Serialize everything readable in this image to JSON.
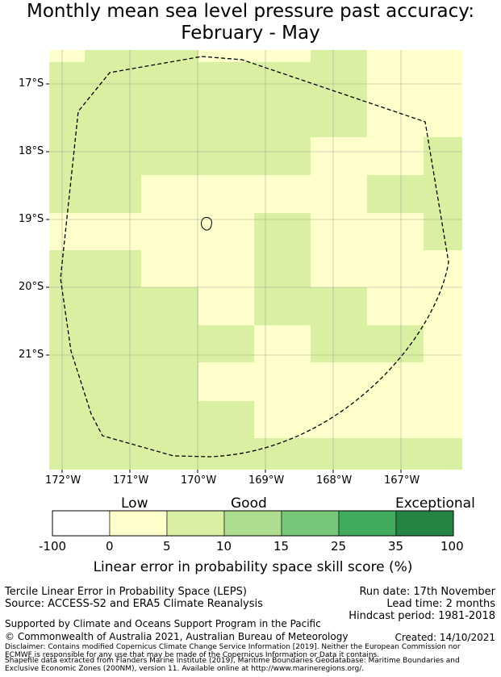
{
  "title_line1": "Monthly mean sea level pressure past accuracy:",
  "title_line2": "February - May",
  "map": {
    "lat_labels": [
      "17°S",
      "18°S",
      "19°S",
      "20°S",
      "21°S"
    ],
    "lon_labels": [
      "172°W",
      "171°W",
      "170°W",
      "169°W",
      "168°W",
      "167°W"
    ]
  },
  "colorbar": {
    "category_low": "Low",
    "category_good": "Good",
    "category_exceptional": "Exceptional",
    "ticks": [
      "-100",
      "0",
      "5",
      "10",
      "15",
      "25",
      "35",
      "100"
    ],
    "colors": [
      "#ffffff",
      "#ffffcc",
      "#d9f0a3",
      "#addd8e",
      "#78c679",
      "#41ab5d",
      "#238443"
    ],
    "label": "Linear error in probability space skill score (%)"
  },
  "info": {
    "method": "Tercile Linear Error in Probability Space (LEPS)",
    "source": "Source: ACCESS-S2 and ERA5 Climate Reanalysis",
    "run_date": "Run date: 17th November",
    "lead_time": "Lead time: 2 months",
    "hindcast": "Hindcast period: 1981-2018",
    "support": "Supported by Climate and Oceans Support Program in the Pacific",
    "copyright": "© Commonwealth of Australia 2021, Australian Bureau of Meteorology",
    "created": "Created: 14/10/2021",
    "disclaimer1": "Disclaimer: Contains modified Copernicus Climate Change Service Information [2019]. Neither the European Commission nor",
    "disclaimer2": "ECMWF is responsible for any use that may be made of the Copernicus Information or Data it contains.",
    "disclaimer3": "Shapefile data extracted from Flanders Marine Institute (2019), Maritime Boundaries Geodatabase: Maritime Boundaries and",
    "disclaimer4": "Exclusive Economic Zones (200NM), version 11. Available online at http://www.marineregions.org/."
  }
}
